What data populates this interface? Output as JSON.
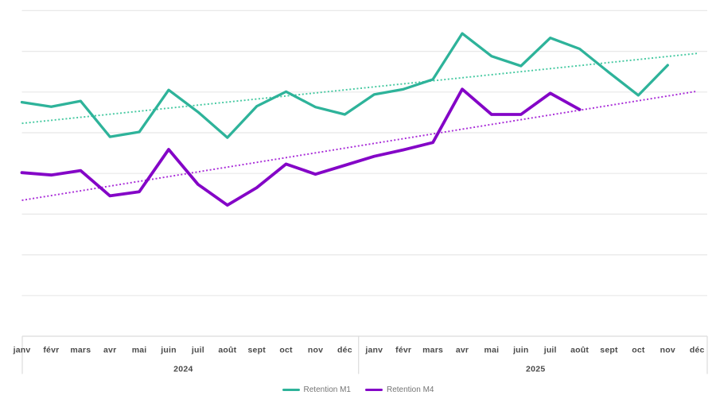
{
  "chart_data": {
    "type": "line",
    "title": "",
    "x_axis": {
      "years": [
        {
          "label": "2024",
          "months": [
            "janv",
            "févr",
            "mars",
            "avr",
            "mai",
            "juin",
            "juil",
            "août",
            "sept",
            "oct",
            "nov",
            "déc"
          ]
        },
        {
          "label": "2025",
          "months": [
            "janv",
            "févr",
            "mars",
            "avr",
            "mai",
            "juin",
            "juil",
            "août",
            "sept",
            "oct",
            "nov",
            "déc"
          ]
        }
      ]
    },
    "y_axis": {
      "labels_visible": false,
      "assumed_range": [
        0,
        80
      ],
      "gridline_step": 10,
      "gridlines_visible": true
    },
    "series": [
      {
        "name": "Retention M1",
        "color": "#2eb39a",
        "values": [
          57.5,
          56.4,
          57.8,
          49.0,
          50.2,
          60.5,
          55.1,
          48.8,
          56.5,
          60.1,
          56.3,
          54.5,
          59.4,
          60.7,
          63.1,
          74.4,
          68.8,
          66.4,
          73.3,
          70.6,
          64.8,
          59.2,
          66.6,
          null
        ]
      },
      {
        "name": "Retention M4",
        "color": "#8405c7",
        "values": [
          40.2,
          39.6,
          40.7,
          34.5,
          35.5,
          45.9,
          37.3,
          32.2,
          36.5,
          42.3,
          39.8,
          42.0,
          44.2,
          45.8,
          47.6,
          60.7,
          54.5,
          54.5,
          59.7,
          55.7,
          null,
          null,
          null,
          null
        ]
      }
    ],
    "trendlines": [
      {
        "for_series": "Retention M1",
        "style": "dotted",
        "color": "#46c9a1",
        "start_value": 52.3,
        "end_value": 69.5
      },
      {
        "for_series": "Retention M4",
        "style": "dotted",
        "color": "#a82bd8",
        "start_value": 33.4,
        "end_value": 60.2
      }
    ],
    "legend": {
      "position": "bottom",
      "items": [
        "Retention M1",
        "Retention M4"
      ]
    }
  },
  "colors": {
    "background": "#ffffff",
    "gridline": "#e8e8e8",
    "axis_border": "#dcdcdc",
    "tick_label": "#4a4a4a",
    "legend_text": "#757575"
  }
}
